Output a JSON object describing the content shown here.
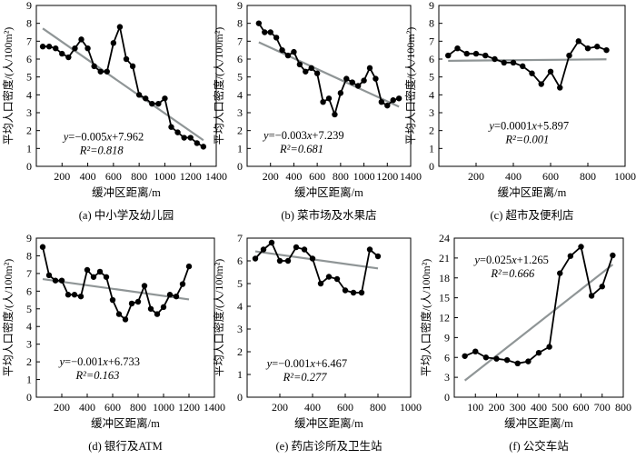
{
  "chart_data": [
    {
      "type": "scatter",
      "caption": "(a) 中小学及幼儿园",
      "ylabel": "平均人口密度/(人/100m²)",
      "xlabel": "缓冲区距离/m",
      "xlim": [
        0,
        1400
      ],
      "ylim": [
        0,
        9
      ],
      "xticks": [
        200,
        400,
        600,
        800,
        1000,
        1200,
        1400
      ],
      "yticks": [
        0,
        1,
        2,
        3,
        4,
        5,
        6,
        7,
        8,
        9
      ],
      "points": [
        [
          50,
          6.7
        ],
        [
          100,
          6.7
        ],
        [
          150,
          6.6
        ],
        [
          200,
          6.3
        ],
        [
          250,
          6.1
        ],
        [
          300,
          6.6
        ],
        [
          350,
          7.1
        ],
        [
          400,
          6.6
        ],
        [
          450,
          5.6
        ],
        [
          500,
          5.3
        ],
        [
          550,
          5.3
        ],
        [
          600,
          6.9
        ],
        [
          650,
          7.8
        ],
        [
          700,
          6.0
        ],
        [
          750,
          5.6
        ],
        [
          800,
          4.0
        ],
        [
          850,
          3.8
        ],
        [
          900,
          3.5
        ],
        [
          950,
          3.5
        ],
        [
          1000,
          3.8
        ],
        [
          1050,
          2.2
        ],
        [
          1100,
          1.9
        ],
        [
          1150,
          1.6
        ],
        [
          1200,
          1.6
        ],
        [
          1250,
          1.3
        ],
        [
          1300,
          1.1
        ]
      ],
      "trend": {
        "slope": -0.005,
        "intercept": 7.962,
        "from": 50,
        "to": 1300
      },
      "equation": "y=−0.005x+7.962",
      "r2": "R²=0.818"
    },
    {
      "type": "scatter",
      "caption": "(b) 菜市场及水果店",
      "ylabel": "平均人口密度/(人/100m²)",
      "xlabel": "缓冲区距离/m",
      "xlim": [
        0,
        1400
      ],
      "ylim": [
        0,
        9
      ],
      "xticks": [
        200,
        400,
        600,
        800,
        1000,
        1200,
        1400
      ],
      "yticks": [
        0,
        1,
        2,
        3,
        4,
        5,
        6,
        7,
        8,
        9
      ],
      "points": [
        [
          100,
          8.0
        ],
        [
          150,
          7.5
        ],
        [
          200,
          7.5
        ],
        [
          250,
          7.2
        ],
        [
          300,
          6.5
        ],
        [
          350,
          6.2
        ],
        [
          400,
          6.4
        ],
        [
          450,
          5.7
        ],
        [
          500,
          5.3
        ],
        [
          550,
          5.5
        ],
        [
          600,
          5.2
        ],
        [
          650,
          3.6
        ],
        [
          700,
          3.8
        ],
        [
          750,
          2.9
        ],
        [
          800,
          4.1
        ],
        [
          850,
          4.9
        ],
        [
          900,
          4.7
        ],
        [
          950,
          4.5
        ],
        [
          1000,
          4.8
        ],
        [
          1050,
          5.5
        ],
        [
          1100,
          4.9
        ],
        [
          1150,
          3.6
        ],
        [
          1200,
          3.4
        ],
        [
          1250,
          3.7
        ],
        [
          1300,
          3.8
        ]
      ],
      "trend": {
        "slope": -0.003,
        "intercept": 7.239,
        "from": 100,
        "to": 1300
      },
      "equation": "y=−0.003x+7.239",
      "r2": "R²=0.681"
    },
    {
      "type": "scatter",
      "caption": "(c) 超市及便利店",
      "ylabel": "平均人口密度/(人/100m²)",
      "xlabel": "缓冲区距离/m",
      "xlim": [
        0,
        1000
      ],
      "ylim": [
        0,
        9
      ],
      "xticks": [
        200,
        400,
        600,
        800,
        1000
      ],
      "yticks": [
        0,
        1,
        2,
        3,
        4,
        5,
        6,
        7,
        8,
        9
      ],
      "points": [
        [
          50,
          6.2
        ],
        [
          100,
          6.6
        ],
        [
          150,
          6.3
        ],
        [
          200,
          6.3
        ],
        [
          250,
          6.2
        ],
        [
          300,
          6.0
        ],
        [
          350,
          5.8
        ],
        [
          400,
          5.8
        ],
        [
          450,
          5.6
        ],
        [
          500,
          5.2
        ],
        [
          550,
          4.6
        ],
        [
          600,
          5.3
        ],
        [
          650,
          4.4
        ],
        [
          700,
          6.2
        ],
        [
          750,
          7.0
        ],
        [
          800,
          6.6
        ],
        [
          850,
          6.7
        ],
        [
          900,
          6.5
        ]
      ],
      "trend": {
        "slope": 0.0001,
        "intercept": 5.897,
        "from": 50,
        "to": 900
      },
      "equation": "y=0.0001x+5.897",
      "r2": "R²=0.001"
    },
    {
      "type": "scatter",
      "caption": "(d) 银行及ATM",
      "ylabel": "平均人口密度/(人/100m²)",
      "xlabel": "缓冲区距离/m",
      "xlim": [
        0,
        1400
      ],
      "ylim": [
        0,
        9
      ],
      "xticks": [
        200,
        400,
        600,
        800,
        1000,
        1200,
        1400
      ],
      "yticks": [
        0,
        1,
        2,
        3,
        4,
        5,
        6,
        7,
        8,
        9
      ],
      "points": [
        [
          50,
          8.5
        ],
        [
          100,
          6.9
        ],
        [
          150,
          6.6
        ],
        [
          200,
          6.6
        ],
        [
          250,
          5.8
        ],
        [
          300,
          5.8
        ],
        [
          350,
          5.7
        ],
        [
          400,
          7.2
        ],
        [
          450,
          6.8
        ],
        [
          500,
          7.1
        ],
        [
          550,
          6.8
        ],
        [
          600,
          5.5
        ],
        [
          650,
          4.7
        ],
        [
          700,
          4.4
        ],
        [
          750,
          5.3
        ],
        [
          800,
          5.4
        ],
        [
          850,
          6.3
        ],
        [
          900,
          5.0
        ],
        [
          950,
          4.7
        ],
        [
          1000,
          5.1
        ],
        [
          1050,
          5.8
        ],
        [
          1100,
          5.7
        ],
        [
          1150,
          6.4
        ],
        [
          1200,
          7.4
        ]
      ],
      "trend": {
        "slope": -0.001,
        "intercept": 6.733,
        "from": 50,
        "to": 1200
      },
      "equation": "y=−0.001x+6.733",
      "r2": "R²=0.163"
    },
    {
      "type": "scatter",
      "caption": "(e) 药店诊所及卫生站",
      "ylabel": "平均人口密度/(人/100m²)",
      "xlabel": "缓冲区距离/m",
      "xlim": [
        0,
        1000
      ],
      "ylim": [
        0,
        7
      ],
      "xticks": [
        200,
        400,
        600,
        800,
        1000
      ],
      "yticks": [
        0,
        1,
        2,
        3,
        4,
        5,
        6,
        7
      ],
      "points": [
        [
          50,
          6.1
        ],
        [
          100,
          6.5
        ],
        [
          150,
          6.8
        ],
        [
          200,
          6.0
        ],
        [
          250,
          6.0
        ],
        [
          300,
          6.6
        ],
        [
          350,
          6.5
        ],
        [
          400,
          6.1
        ],
        [
          450,
          5.0
        ],
        [
          500,
          5.3
        ],
        [
          550,
          5.2
        ],
        [
          600,
          4.7
        ],
        [
          650,
          4.6
        ],
        [
          700,
          4.6
        ],
        [
          750,
          6.5
        ],
        [
          800,
          6.2
        ]
      ],
      "trend": {
        "slope": -0.001,
        "intercept": 6.467,
        "from": 50,
        "to": 800
      },
      "equation": "y=−0.001x+6.467",
      "r2": "R²=0.277"
    },
    {
      "type": "scatter",
      "caption": "(f) 公交车站",
      "ylabel": "平均人口密度/(人/100m²)",
      "xlabel": "缓冲区距离/m",
      "xlim": [
        0,
        800
      ],
      "ylim": [
        0,
        24
      ],
      "xticks": [
        100,
        200,
        300,
        400,
        500,
        600,
        700,
        800
      ],
      "yticks": [
        0,
        3,
        6,
        9,
        12,
        15,
        18,
        21,
        24
      ],
      "points": [
        [
          50,
          6.2
        ],
        [
          100,
          6.9
        ],
        [
          150,
          6.0
        ],
        [
          200,
          5.8
        ],
        [
          250,
          5.6
        ],
        [
          300,
          5.1
        ],
        [
          350,
          5.4
        ],
        [
          400,
          6.7
        ],
        [
          450,
          7.6
        ],
        [
          500,
          18.7
        ],
        [
          550,
          21.3
        ],
        [
          600,
          22.7
        ],
        [
          650,
          15.3
        ],
        [
          700,
          16.7
        ],
        [
          750,
          21.4
        ]
      ],
      "trend": {
        "slope": 0.025,
        "intercept": 1.265,
        "from": 50,
        "to": 750
      },
      "equation": "y=0.025x+1.265",
      "r2": "R²=0.666"
    }
  ]
}
